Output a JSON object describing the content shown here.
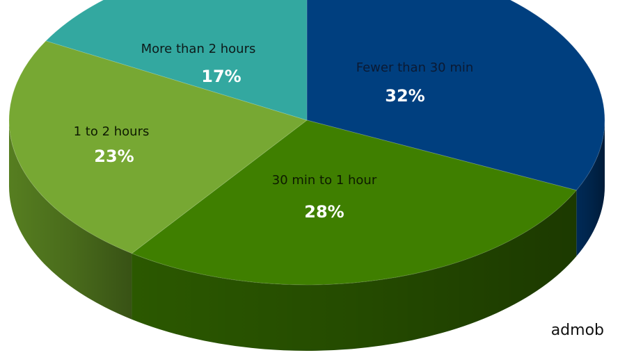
{
  "chart_data": {
    "type": "pie",
    "style": "3d",
    "title": "",
    "slices": [
      {
        "label": "Fewer than 30 min",
        "value": 32,
        "value_label": "32%",
        "color": "#003f7f",
        "side_color": "#002a57",
        "label_color": "#0b1a33",
        "value_color": "#ffffff"
      },
      {
        "label": "30 min to 1 hour",
        "value": 28,
        "value_label": "28%",
        "color": "#3f7f00",
        "side_color": "#2b5800",
        "label_color": "#0d1a00",
        "value_color": "#ffffff"
      },
      {
        "label": "1 to 2 hours",
        "value": 23,
        "value_label": "23%",
        "color": "#77a833",
        "side_color": "#567e20",
        "label_color": "#0d1a00",
        "value_color": "#ffffff"
      },
      {
        "label": "More than 2 hours",
        "value": 17,
        "value_label": "17%",
        "color": "#33a8a0",
        "side_color": "#237a74",
        "label_color": "#0d1a1a",
        "value_color": "#ffffff"
      }
    ],
    "source": "admob"
  }
}
